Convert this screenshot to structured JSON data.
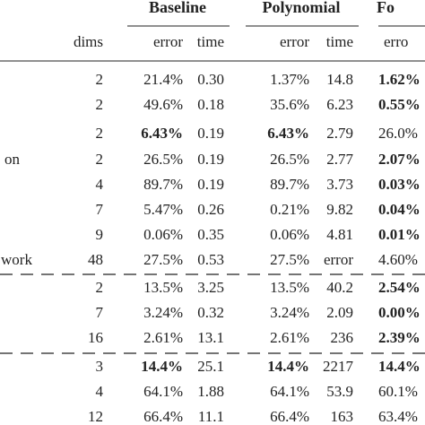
{
  "table": {
    "groups": [
      {
        "title": "Baseline",
        "cols": [
          2,
          3
        ]
      },
      {
        "title": "Polynomial",
        "cols": [
          4,
          5
        ]
      },
      {
        "title": "Fo",
        "cols": [
          6
        ]
      }
    ],
    "columns": [
      "dims",
      "error",
      "time",
      "error",
      "time",
      "erro"
    ],
    "rows": [
      {
        "cells": [
          "2",
          "21.4%",
          "0.30",
          "1.37%",
          "14.8",
          "1.62%"
        ],
        "bold": [
          5
        ]
      },
      {
        "cells": [
          "2",
          "49.6%",
          "0.18",
          "35.6%",
          "6.23",
          "0.55%"
        ],
        "bold": [
          5
        ]
      },
      {
        "cells": [
          "2",
          "6.43%",
          "0.19",
          "6.43%",
          "2.79",
          "26.0%"
        ],
        "bold": [
          1,
          3
        ]
      },
      {
        "label": "on",
        "cells": [
          "2",
          "26.5%",
          "0.19",
          "26.5%",
          "2.77",
          "2.07%"
        ],
        "bold": [
          5
        ]
      },
      {
        "cells": [
          "4",
          "89.7%",
          "0.19",
          "89.7%",
          "3.73",
          "0.03%"
        ],
        "bold": [
          5
        ]
      },
      {
        "cells": [
          "7",
          "5.47%",
          "0.26",
          "0.21%",
          "9.82",
          "0.04%"
        ],
        "bold": [
          5
        ]
      },
      {
        "cells": [
          "9",
          "0.06%",
          "0.35",
          "0.06%",
          "4.81",
          "0.01%"
        ],
        "bold": [
          5
        ]
      },
      {
        "label": "work",
        "cells": [
          "48",
          "27.5%",
          "0.53",
          "27.5%",
          "error",
          "4.60%"
        ],
        "bold": []
      },
      {
        "cells": [
          "2",
          "13.5%",
          "3.25",
          "13.5%",
          "40.2",
          "2.54%"
        ],
        "bold": [
          5
        ],
        "dashed_above": true
      },
      {
        "cells": [
          "7",
          "3.24%",
          "0.32",
          "3.24%",
          "2.09",
          "0.00%"
        ],
        "bold": [
          5
        ]
      },
      {
        "cells": [
          "16",
          "2.61%",
          "13.1",
          "2.61%",
          "236",
          "2.39%"
        ],
        "bold": [
          5
        ]
      },
      {
        "cells": [
          "3",
          "14.4%",
          "25.1",
          "14.4%",
          "2217",
          "14.4%"
        ],
        "bold": [
          1,
          3,
          5
        ],
        "dashed_above": true
      },
      {
        "cells": [
          "4",
          "64.1%",
          "1.88",
          "64.1%",
          "53.9",
          "60.1%"
        ],
        "bold": []
      },
      {
        "cells": [
          "12",
          "66.4%",
          "11.1",
          "66.4%",
          "163",
          "63.4%"
        ],
        "bold": []
      }
    ]
  }
}
